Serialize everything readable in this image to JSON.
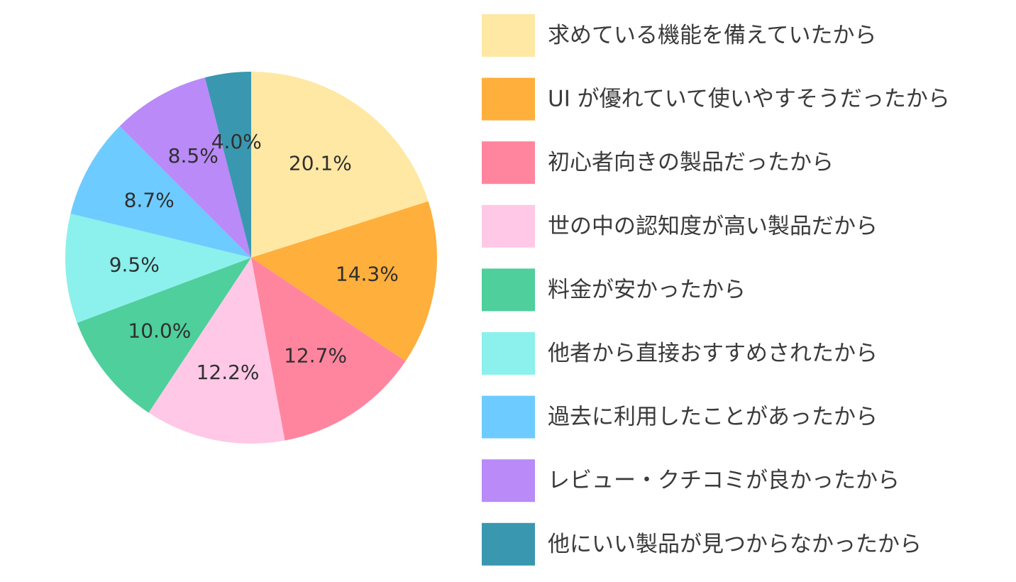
{
  "chart_data": {
    "type": "pie",
    "start_angle": "12 o'clock",
    "direction": "clockwise",
    "legend_position": "right",
    "slices": [
      {
        "label": "求めている機能を備えていたから",
        "value": 20.1,
        "display": "20.1%",
        "color": "#FFE8A4"
      },
      {
        "label": "UI が優れていて使いやすそうだったから",
        "value": 14.3,
        "display": "14.3%",
        "color": "#FFAF3C"
      },
      {
        "label": "初心者向きの製品だったから",
        "value": 12.7,
        "display": "12.7%",
        "color": "#FF859F"
      },
      {
        "label": "世の中の認知度が高い製品だから",
        "value": 12.2,
        "display": "12.2%",
        "color": "#FFC8E6"
      },
      {
        "label": "料金が安かったから",
        "value": 10.0,
        "display": "10.0%",
        "color": "#4ECF9C"
      },
      {
        "label": "他者から直接おすすめされたから",
        "value": 9.5,
        "display": "9.5%",
        "color": "#8CF0EC"
      },
      {
        "label": "過去に利用したことがあったから",
        "value": 8.7,
        "display": "8.7%",
        "color": "#6ECBFF"
      },
      {
        "label": "レビュー・クチコミが良かったから",
        "value": 8.5,
        "display": "8.5%",
        "color": "#B98AF8"
      },
      {
        "label": "他にいい製品が見つからなかったから",
        "value": 4.0,
        "display": "4.0%",
        "color": "#3A97B0"
      }
    ]
  }
}
